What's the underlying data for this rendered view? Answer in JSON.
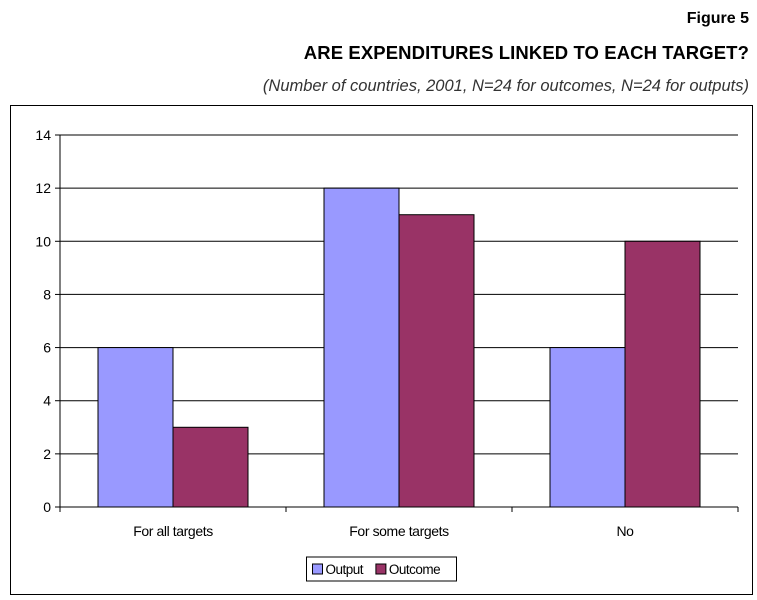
{
  "header": {
    "figure_label": "Figure 5",
    "title": "ARE EXPENDITURES LINKED TO EACH TARGET?",
    "subtitle": "(Number of countries, 2001, N=24 for outcomes, N=24 for outputs)"
  },
  "chart_data": {
    "type": "bar",
    "title": "ARE EXPENDITURES LINKED TO EACH TARGET?",
    "subtitle": "(Number of countries, 2001, N=24 for outcomes, N=24 for outputs)",
    "xlabel": "",
    "ylabel": "",
    "categories": [
      "For all targets",
      "For some targets",
      "No"
    ],
    "series": [
      {
        "name": "Output",
        "values": [
          6,
          12,
          6
        ],
        "color": "#9999ff"
      },
      {
        "name": "Outcome",
        "values": [
          3,
          11,
          10
        ],
        "color": "#993366"
      }
    ],
    "ylim": [
      0,
      14
    ],
    "yticks": [
      0,
      2,
      4,
      6,
      8,
      10,
      12,
      14
    ],
    "grid": true,
    "legend": "bottom-center"
  }
}
